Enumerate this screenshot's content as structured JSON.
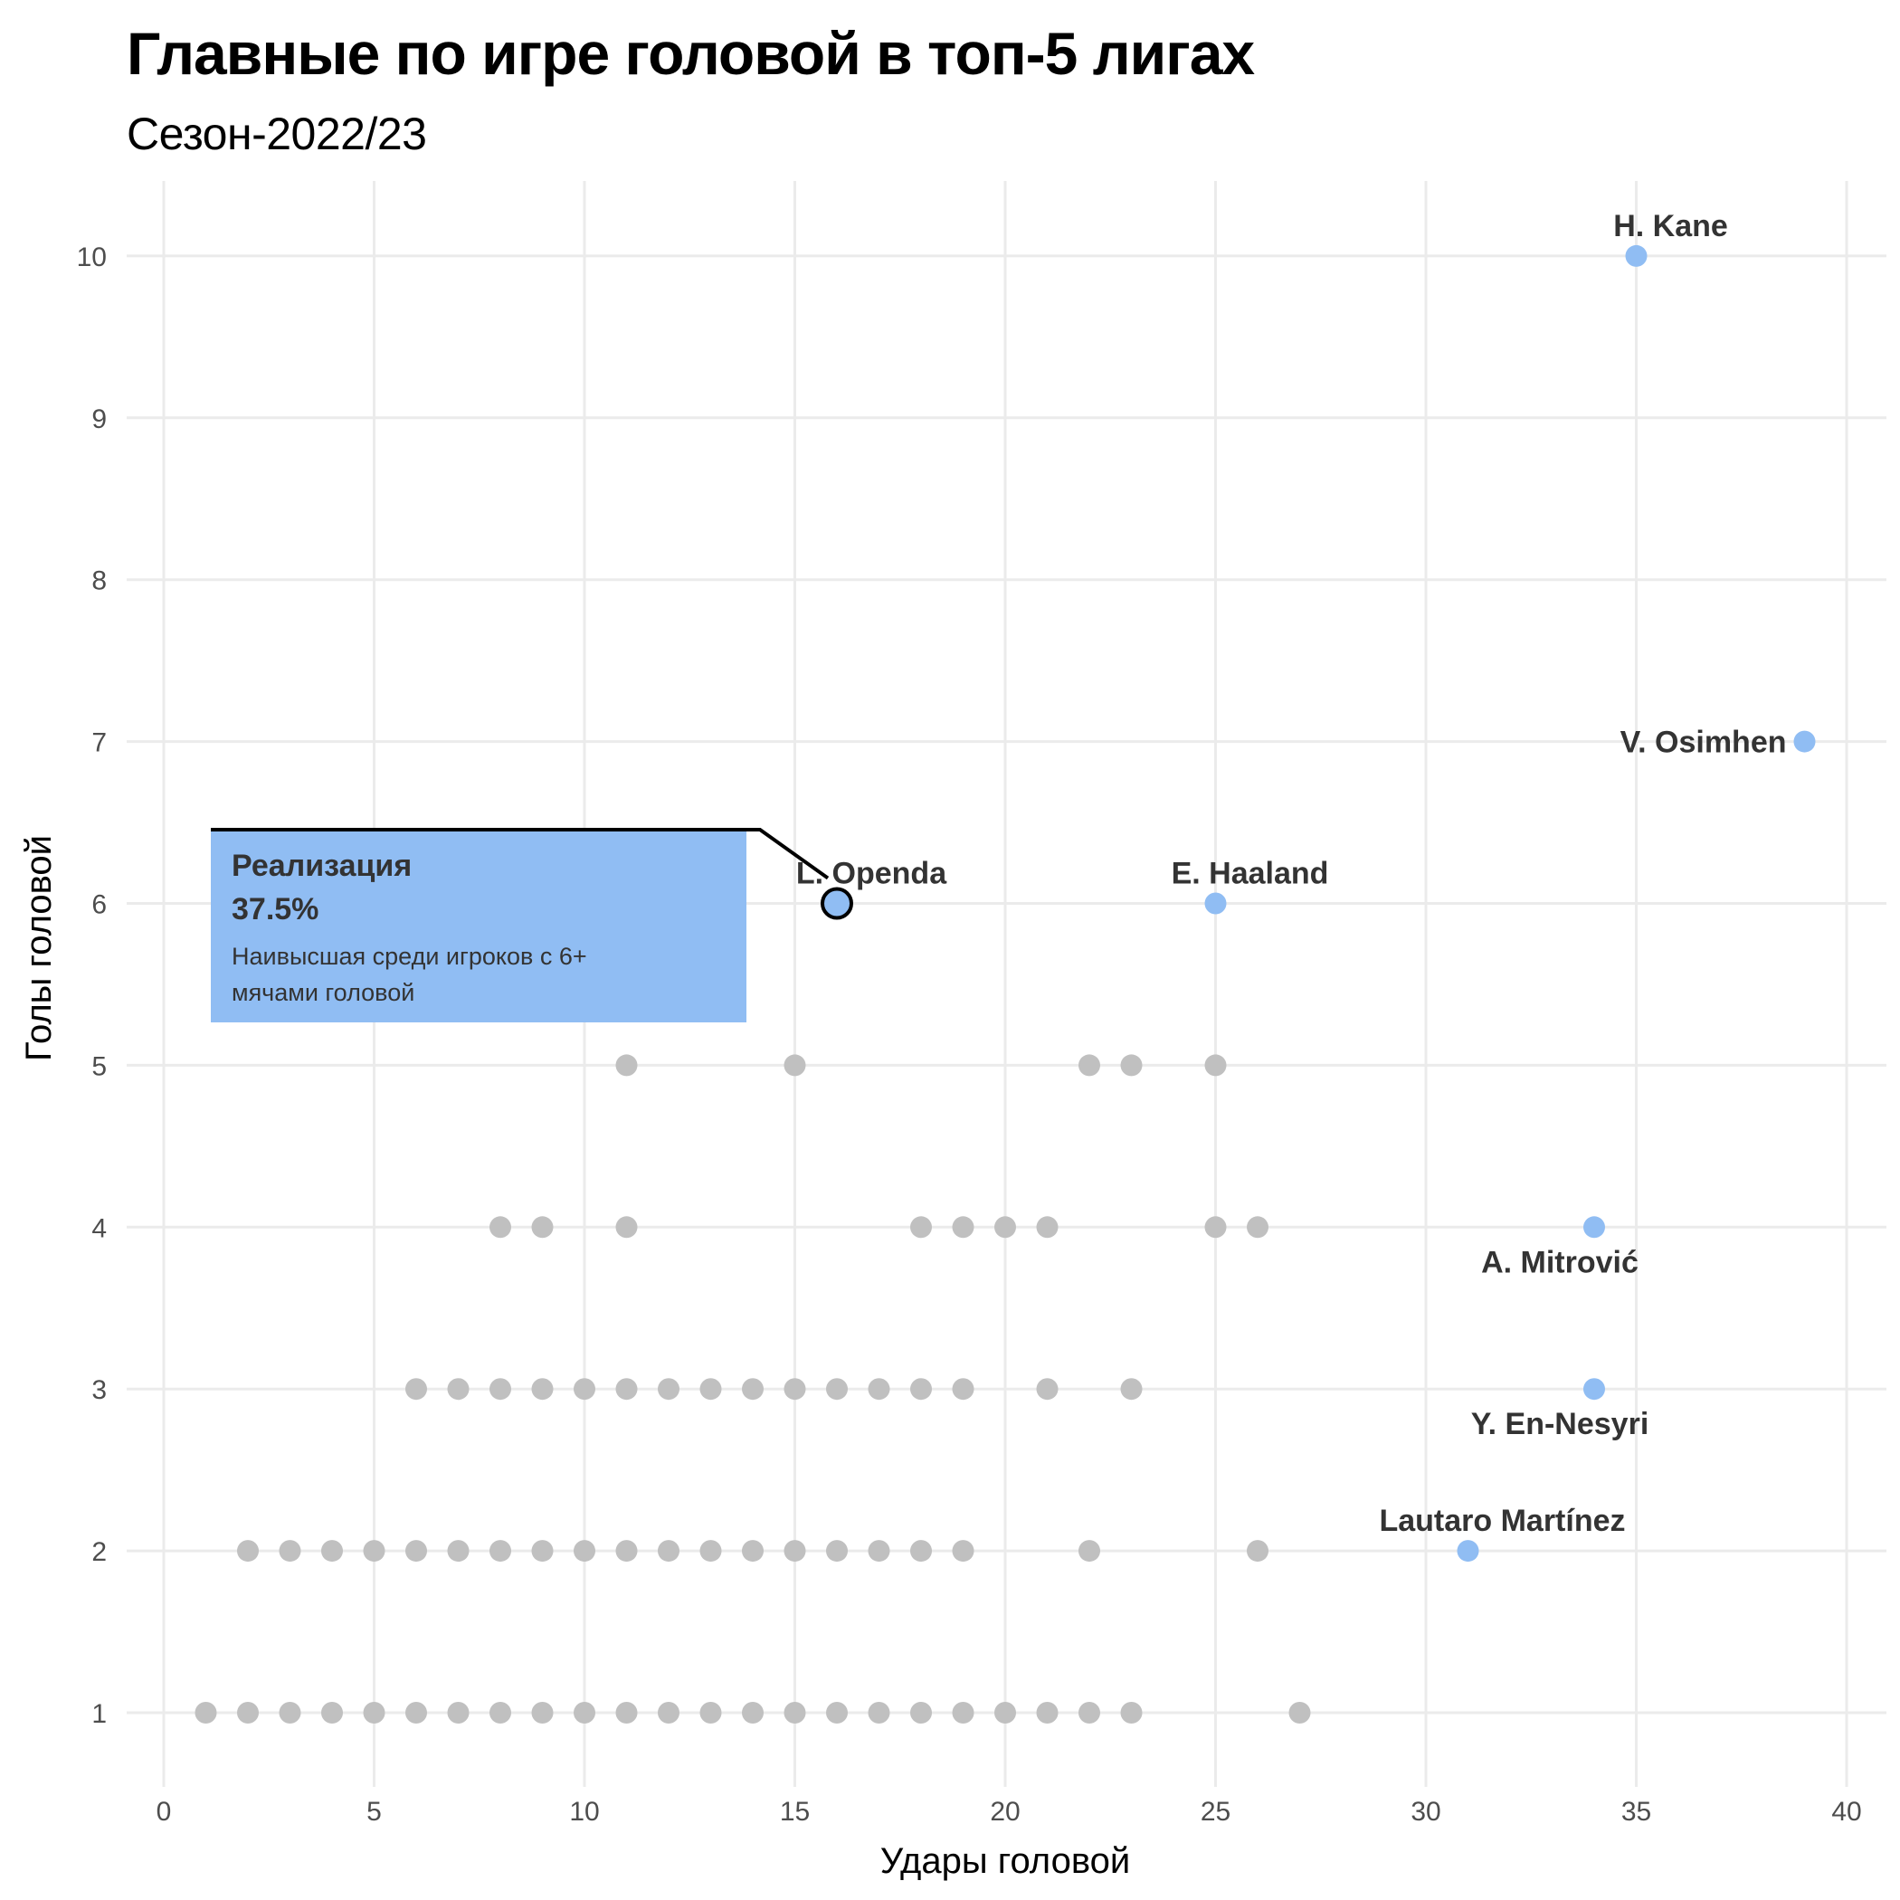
{
  "chart_data": {
    "type": "scatter",
    "title": "Главные по игре головой в топ-5 лигах",
    "subtitle": "Сезон-2022/23",
    "xlabel": "Удары головой",
    "ylabel": "Голы головой",
    "xlim": [
      0,
      40
    ],
    "ylim": [
      1,
      10
    ],
    "x_ticks": [
      0,
      5,
      10,
      15,
      20,
      25,
      30,
      35,
      40
    ],
    "y_ticks": [
      1,
      2,
      3,
      4,
      5,
      6,
      7,
      8,
      9,
      10
    ],
    "grid": true,
    "colors": {
      "highlight": "#90bdf3",
      "other": "#c0c0c0",
      "annotation_box": "#90bdf3"
    },
    "highlighted_points": [
      {
        "label": "H. Kane",
        "x": 35,
        "y": 10,
        "label_pos": "above-right"
      },
      {
        "label": "V. Osimhen",
        "x": 39,
        "y": 7,
        "label_pos": "left"
      },
      {
        "label": "L. Openda",
        "x": 16,
        "y": 6,
        "label_pos": "above-right",
        "emphasis": true
      },
      {
        "label": "E. Haaland",
        "x": 25,
        "y": 6,
        "label_pos": "above-right"
      },
      {
        "label": "A. Mitrović",
        "x": 34,
        "y": 4,
        "label_pos": "below-left"
      },
      {
        "label": "Y. En-Nesyri",
        "x": 34,
        "y": 3,
        "label_pos": "below-left"
      },
      {
        "label": "Lautaro Martínez",
        "x": 31,
        "y": 2,
        "label_pos": "above-right"
      }
    ],
    "other_points": [
      {
        "y": 5,
        "x": [
          11,
          15,
          22,
          23,
          25
        ]
      },
      {
        "y": 4,
        "x": [
          8,
          9,
          11,
          18,
          19,
          20,
          21,
          25,
          26
        ]
      },
      {
        "y": 3,
        "x": [
          6,
          7,
          8,
          9,
          10,
          11,
          12,
          13,
          14,
          15,
          16,
          17,
          18,
          19,
          21,
          23
        ]
      },
      {
        "y": 2,
        "x": [
          2,
          3,
          4,
          5,
          6,
          7,
          8,
          9,
          10,
          11,
          12,
          13,
          14,
          15,
          16,
          17,
          18,
          19,
          22,
          26
        ]
      },
      {
        "y": 1,
        "x": [
          1,
          2,
          3,
          4,
          5,
          6,
          7,
          8,
          9,
          10,
          11,
          12,
          13,
          14,
          15,
          16,
          17,
          18,
          19,
          20,
          21,
          22,
          23,
          27
        ]
      }
    ],
    "annotation": {
      "title": "Реализация",
      "value": "37.5%",
      "text_lines": [
        "Наивысшая среди игроков с 6+",
        "мячами головой"
      ],
      "target": "L. Openda"
    }
  }
}
